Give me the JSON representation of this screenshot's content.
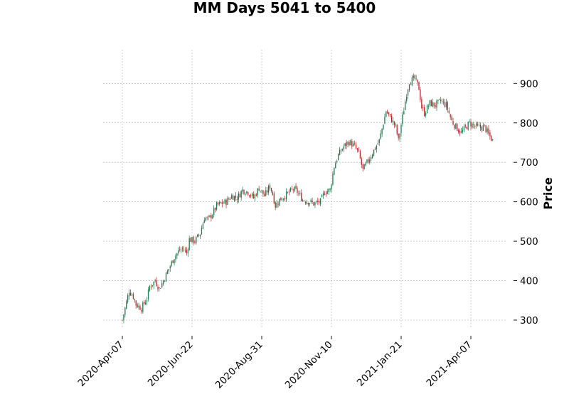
{
  "chart_data": {
    "type": "candlestick",
    "title": "MM Days 5041 to 5400",
    "xlabel": "",
    "ylabel": "Price",
    "ylim": [
      265,
      960
    ],
    "y_ticks": [
      300,
      400,
      500,
      600,
      700,
      800,
      900
    ],
    "x_ticks": [
      {
        "label": "2020-Apr-07",
        "index": 0
      },
      {
        "label": "2020-Jun-22",
        "index": 51
      },
      {
        "label": "2020-Aug-31",
        "index": 102
      },
      {
        "label": "2020-Nov-10",
        "index": 153
      },
      {
        "label": "2021-Jan-21",
        "index": 204
      },
      {
        "label": "2021-Apr-07",
        "index": 255
      }
    ],
    "y_axis_side": "right",
    "grid": true,
    "colors": {
      "up": "#1b7a4f",
      "down": "#b22b2b",
      "grid": "#b0b0b0"
    },
    "series": {
      "name": "",
      "n_candles": 272,
      "close_anchors": [
        [
          0,
          300
        ],
        [
          2,
          330
        ],
        [
          5,
          375
        ],
        [
          8,
          360
        ],
        [
          10,
          340
        ],
        [
          14,
          330
        ],
        [
          18,
          355
        ],
        [
          20,
          385
        ],
        [
          24,
          400
        ],
        [
          27,
          380
        ],
        [
          30,
          400
        ],
        [
          34,
          430
        ],
        [
          38,
          460
        ],
        [
          42,
          478
        ],
        [
          45,
          480
        ],
        [
          47,
          470
        ],
        [
          49,
          505
        ],
        [
          53,
          500
        ],
        [
          57,
          520
        ],
        [
          60,
          560
        ],
        [
          63,
          555
        ],
        [
          66,
          570
        ],
        [
          69,
          590
        ],
        [
          72,
          595
        ],
        [
          76,
          600
        ],
        [
          80,
          615
        ],
        [
          84,
          610
        ],
        [
          88,
          630
        ],
        [
          92,
          625
        ],
        [
          96,
          610
        ],
        [
          100,
          635
        ],
        [
          104,
          615
        ],
        [
          108,
          640
        ],
        [
          110,
          620
        ],
        [
          112,
          590
        ],
        [
          115,
          605
        ],
        [
          120,
          618
        ],
        [
          125,
          632
        ],
        [
          128,
          625
        ],
        [
          132,
          605
        ],
        [
          137,
          600
        ],
        [
          140,
          595
        ],
        [
          145,
          600
        ],
        [
          148,
          625
        ],
        [
          152,
          630
        ],
        [
          155,
          690
        ],
        [
          158,
          718
        ],
        [
          162,
          740
        ],
        [
          166,
          752
        ],
        [
          170,
          740
        ],
        [
          173,
          722
        ],
        [
          176,
          680
        ],
        [
          180,
          705
        ],
        [
          184,
          730
        ],
        [
          188,
          755
        ],
        [
          191,
          800
        ],
        [
          193,
          830
        ],
        [
          197,
          808
        ],
        [
          200,
          790
        ],
        [
          202,
          755
        ],
        [
          205,
          815
        ],
        [
          208,
          875
        ],
        [
          210,
          905
        ],
        [
          214,
          912
        ],
        [
          217,
          888
        ],
        [
          219,
          840
        ],
        [
          221,
          825
        ],
        [
          225,
          850
        ],
        [
          229,
          845
        ],
        [
          233,
          855
        ],
        [
          237,
          845
        ],
        [
          241,
          805
        ],
        [
          244,
          790
        ],
        [
          248,
          775
        ],
        [
          251,
          788
        ],
        [
          254,
          800
        ],
        [
          257,
          793
        ],
        [
          261,
          788
        ],
        [
          265,
          790
        ],
        [
          268,
          770
        ],
        [
          271,
          755
        ]
      ]
    }
  }
}
